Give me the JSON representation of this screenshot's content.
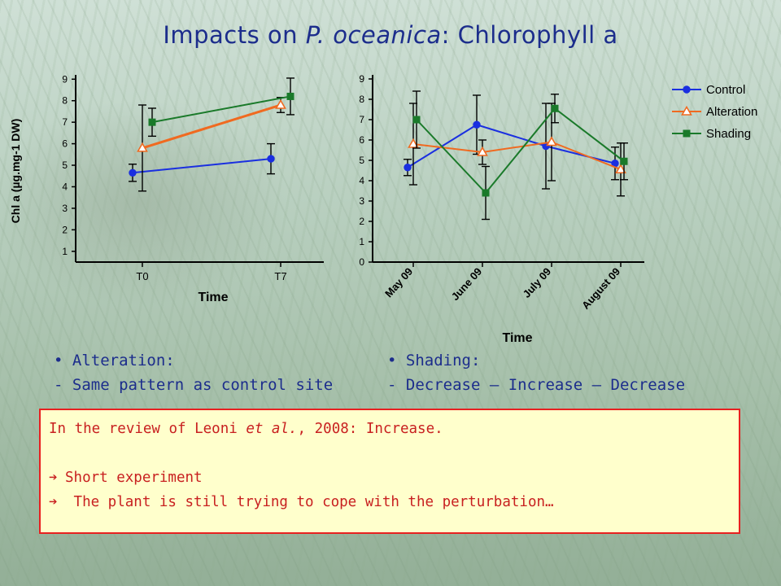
{
  "title": {
    "prefix": "Impacts on ",
    "species": "P. oceanica",
    "suffix": ": Chlorophyll a"
  },
  "colors": {
    "control": "#1a2fe0",
    "alteration": "#f06a20",
    "shading": "#1a7a2a",
    "title": "#1c2d8c",
    "note_text": "#c82020",
    "note_border": "#e82020",
    "note_bg": "#ffffcc"
  },
  "chart_data": [
    {
      "type": "line",
      "ylabel": "Chl a (µg.mg-1 DW)",
      "xlabel": "Time",
      "categories": [
        "T0",
        "T7"
      ],
      "ylim": [
        0.5,
        9.2
      ],
      "yticks": [
        1,
        2,
        3,
        4,
        5,
        6,
        7,
        8,
        9
      ],
      "series": [
        {
          "name": "Control",
          "values": [
            4.65,
            5.3
          ],
          "err": [
            0.4,
            0.7
          ]
        },
        {
          "name": "Alteration",
          "values": [
            5.8,
            7.8
          ],
          "err": [
            2.0,
            0.35
          ]
        },
        {
          "name": "Shading",
          "values": [
            7.0,
            8.2
          ],
          "err": [
            0.65,
            0.85
          ]
        }
      ]
    },
    {
      "type": "line",
      "xlabel": "Time",
      "categories": [
        "May 09",
        "June 09",
        "July 09",
        "August 09"
      ],
      "ylim": [
        0,
        9.2
      ],
      "yticks": [
        0,
        1,
        2,
        3,
        4,
        5,
        6,
        7,
        8,
        9
      ],
      "legend": "right",
      "series": [
        {
          "name": "Control",
          "values": [
            4.65,
            6.75,
            5.7,
            4.85
          ],
          "err": [
            0.4,
            1.45,
            2.1,
            0.8
          ]
        },
        {
          "name": "Alteration",
          "values": [
            5.8,
            5.4,
            5.9,
            4.55
          ],
          "err": [
            2.0,
            0.6,
            1.9,
            1.3
          ]
        },
        {
          "name": "Shading",
          "values": [
            7.0,
            3.4,
            7.55,
            4.95
          ],
          "err": [
            1.4,
            1.3,
            0.7,
            0.9
          ]
        }
      ]
    }
  ],
  "bullets_left": {
    "head": "• Alteration:",
    "body": "- Same pattern as control site"
  },
  "bullets_right": {
    "head": "• Shading:",
    "body": "- Decrease – Increase – Decrease"
  },
  "note": {
    "line1_prefix": "In the review of Leoni ",
    "line1_italic": "et al.",
    "line1_suffix": ", 2008: Increase.",
    "arrow": "➔",
    "line2": "Short experiment",
    "line3": " The plant is still trying to cope with the perturbation…"
  }
}
